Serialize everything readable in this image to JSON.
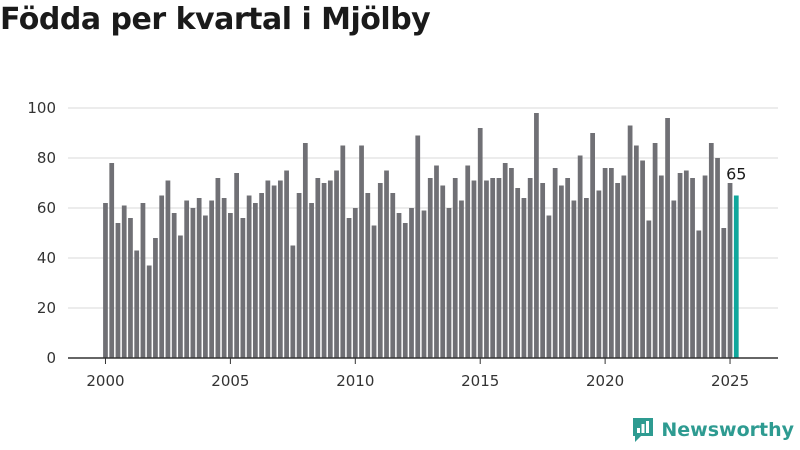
{
  "colors": {
    "bar": "#707075",
    "highlight": "#11a79c",
    "grid": "#d9d9d9",
    "axis": "#333333",
    "brand": "#2e9b91"
  },
  "brand": {
    "name": "Newsworthy",
    "icon": "newsworthy-chart-bubble-icon"
  },
  "chart_data": {
    "type": "bar",
    "title": "Födda per kvartal i Mjölby",
    "xlabel": "",
    "ylabel": "",
    "ylim": [
      0,
      100
    ],
    "yticks": [
      0,
      20,
      40,
      60,
      80,
      100
    ],
    "xticks": [
      2000,
      2005,
      2010,
      2015,
      2020,
      2025
    ],
    "grid": true,
    "start_year": 2000,
    "highlight_last": true,
    "last_value_label": "65",
    "values": [
      62,
      78,
      54,
      61,
      56,
      43,
      62,
      37,
      48,
      65,
      71,
      58,
      49,
      63,
      60,
      64,
      57,
      63,
      72,
      64,
      58,
      74,
      56,
      65,
      62,
      66,
      71,
      69,
      71,
      75,
      45,
      66,
      86,
      62,
      72,
      70,
      71,
      75,
      85,
      56,
      60,
      85,
      66,
      53,
      70,
      75,
      66,
      58,
      54,
      60,
      89,
      59,
      72,
      77,
      69,
      60,
      72,
      63,
      77,
      71,
      92,
      71,
      72,
      72,
      78,
      76,
      68,
      64,
      72,
      98,
      70,
      57,
      76,
      69,
      72,
      63,
      81,
      64,
      90,
      67,
      76,
      76,
      70,
      73,
      93,
      85,
      79,
      55,
      86,
      73,
      96,
      63,
      74,
      75,
      72,
      51,
      73,
      86,
      80,
      52,
      70,
      65
    ]
  }
}
